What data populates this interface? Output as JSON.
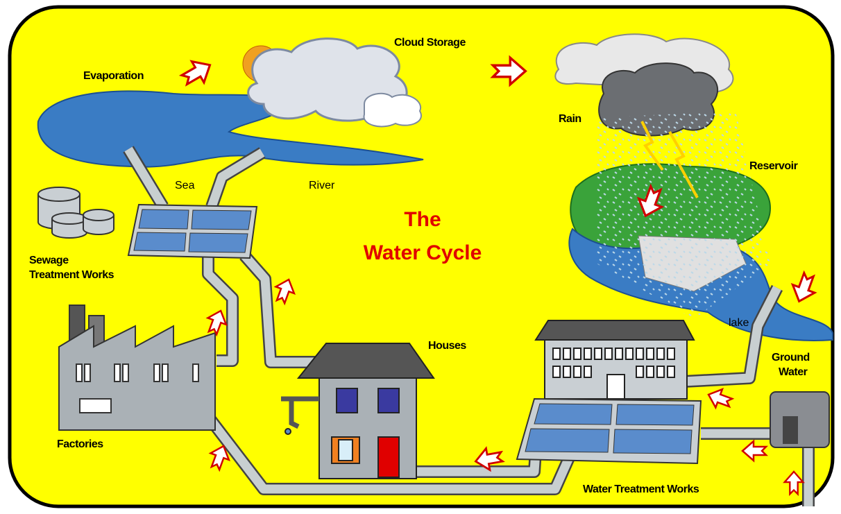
{
  "title": [
    "The",
    "Water Cycle"
  ],
  "labels": {
    "evaporation": "Evaporation",
    "cloud_storage": "Cloud Storage",
    "rain": "Rain",
    "reservoir": "Reservoir",
    "sea": "Sea",
    "river": "River",
    "sewage_works": [
      "Sewage",
      "Treatment Works"
    ],
    "houses": "Houses",
    "factories": "Factories",
    "lake": "lake",
    "ground_water": [
      "Ground",
      "Water"
    ],
    "water_treatment_works": "Water Treatment Works"
  }
}
